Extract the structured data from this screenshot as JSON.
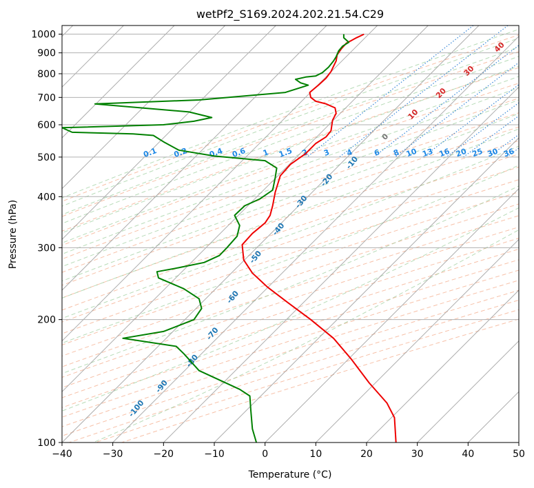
{
  "chart_data": {
    "type": "line",
    "title": "wetPf2_S169.2024.202.21.54.C29",
    "xlabel": "Temperature (°C)",
    "ylabel": "Pressure (hPa)",
    "xlim": [
      -40,
      50
    ],
    "ylim": [
      1050,
      100
    ],
    "y_scale": "log",
    "grid": true,
    "x_ticks": [
      -40,
      -30,
      -20,
      -10,
      0,
      10,
      20,
      30,
      40,
      50
    ],
    "y_ticks": [
      100,
      200,
      300,
      400,
      500,
      600,
      700,
      800,
      900,
      1000
    ],
    "colors": {
      "temperature": "#ee0000",
      "dewpoint": "#008000",
      "dry_adiabat": "#f4a582",
      "moist_adiabat": "#99cc99",
      "mixing_ratio": "#1f78d1",
      "isotherm": "#999999",
      "label_blue": "#1f77b4",
      "label_red": "#d62728",
      "label_mixing": "#1e88e5"
    },
    "series": [
      {
        "key": "temperature",
        "points": [
          [
            25.8,
            100
          ],
          [
            25.5,
            115
          ],
          [
            24.0,
            125
          ],
          [
            20.5,
            140
          ],
          [
            17.0,
            160
          ],
          [
            13.5,
            180
          ],
          [
            9.0,
            200
          ],
          [
            4.5,
            220
          ],
          [
            0.5,
            240
          ],
          [
            -2.5,
            260
          ],
          [
            -4.2,
            280
          ],
          [
            -4.5,
            305
          ],
          [
            -2.5,
            325
          ],
          [
            0.0,
            345
          ],
          [
            1.0,
            360
          ],
          [
            1.5,
            380
          ],
          [
            2.0,
            410
          ],
          [
            3.0,
            450
          ],
          [
            5.0,
            480
          ],
          [
            8.0,
            510
          ],
          [
            10.0,
            540
          ],
          [
            12.0,
            560
          ],
          [
            13.0,
            580
          ],
          [
            13.3,
            615
          ],
          [
            14.0,
            640
          ],
          [
            13.8,
            660
          ],
          [
            12.0,
            675
          ],
          [
            10.0,
            685
          ],
          [
            9.0,
            700
          ],
          [
            8.8,
            720
          ],
          [
            10.5,
            750
          ],
          [
            12.0,
            780
          ],
          [
            13.0,
            810
          ],
          [
            13.5,
            835
          ],
          [
            14.0,
            860
          ],
          [
            14.2,
            890
          ],
          [
            15.0,
            920
          ],
          [
            16.0,
            950
          ],
          [
            18.0,
            980
          ],
          [
            19.5,
            1000
          ]
        ]
      },
      {
        "key": "dewpoint",
        "points": [
          [
            -1.7,
            100
          ],
          [
            -2.5,
            108
          ],
          [
            -2.8,
            120
          ],
          [
            -3.0,
            130
          ],
          [
            -5.0,
            135
          ],
          [
            -13.0,
            150
          ],
          [
            -16.0,
            165
          ],
          [
            -17.5,
            172
          ],
          [
            -28.0,
            180
          ],
          [
            -20.0,
            187
          ],
          [
            -14.0,
            200
          ],
          [
            -12.5,
            213
          ],
          [
            -13.0,
            225
          ],
          [
            -16.0,
            238
          ],
          [
            -21.0,
            253
          ],
          [
            -21.3,
            262
          ],
          [
            -17.0,
            268
          ],
          [
            -12.0,
            276
          ],
          [
            -9.0,
            287
          ],
          [
            -7.5,
            300
          ],
          [
            -5.5,
            320
          ],
          [
            -5.0,
            340
          ],
          [
            -6.0,
            360
          ],
          [
            -4.0,
            380
          ],
          [
            -1.0,
            395
          ],
          [
            1.5,
            415
          ],
          [
            2.0,
            445
          ],
          [
            2.3,
            470
          ],
          [
            0.0,
            490
          ],
          [
            -10.0,
            503
          ],
          [
            -17.0,
            520
          ],
          [
            -20.0,
            545
          ],
          [
            -22.0,
            565
          ],
          [
            -26.0,
            570
          ],
          [
            -38.0,
            575
          ],
          [
            -40.0,
            590
          ],
          [
            -20.0,
            600
          ],
          [
            -14.0,
            612
          ],
          [
            -10.5,
            625
          ],
          [
            -15.0,
            645
          ],
          [
            -33.5,
            675
          ],
          [
            -13.0,
            690
          ],
          [
            4.0,
            720
          ],
          [
            8.5,
            750
          ],
          [
            7.0,
            760
          ],
          [
            6.0,
            775
          ],
          [
            8.0,
            785
          ],
          [
            10.0,
            790
          ],
          [
            11.3,
            805
          ],
          [
            12.5,
            830
          ],
          [
            13.5,
            860
          ],
          [
            14.0,
            880
          ],
          [
            14.5,
            910
          ],
          [
            15.3,
            935
          ],
          [
            16.5,
            955
          ],
          [
            15.5,
            980
          ],
          [
            15.5,
            1000
          ]
        ]
      }
    ],
    "annotations": {
      "moist_adiabats": [
        {
          "text": "-100",
          "x": -25,
          "y": 120
        },
        {
          "text": "-90",
          "x": -20,
          "y": 136
        },
        {
          "text": "-80",
          "x": -14,
          "y": 157
        },
        {
          "text": "-70",
          "x": -10,
          "y": 183
        },
        {
          "text": "-60",
          "x": -6,
          "y": 225
        },
        {
          "text": "-50",
          "x": -1.5,
          "y": 282
        },
        {
          "text": "-40",
          "x": 3,
          "y": 330
        },
        {
          "text": "-30",
          "x": 7.5,
          "y": 385
        },
        {
          "text": "-20",
          "x": 12.5,
          "y": 435
        },
        {
          "text": "-10",
          "x": 17.5,
          "y": 480
        }
      ],
      "dry_adiabats": [
        {
          "text": "0",
          "x": 24,
          "y": 555
        },
        {
          "text": "10",
          "x": 29.5,
          "y": 630
        },
        {
          "text": "20",
          "x": 35,
          "y": 710
        },
        {
          "text": "30",
          "x": 40.5,
          "y": 805
        },
        {
          "text": "40",
          "x": 46.5,
          "y": 920
        }
      ],
      "mixing_ratios": [
        {
          "text": "0.1",
          "x": -22.5
        },
        {
          "text": "0.2",
          "x": -16.5
        },
        {
          "text": "0.4",
          "x": -9.5
        },
        {
          "text": "0.6",
          "x": -5
        },
        {
          "text": "1",
          "x": 0.3
        },
        {
          "text": "1.5",
          "x": 4.2
        },
        {
          "text": "2",
          "x": 8
        },
        {
          "text": "3",
          "x": 12.3
        },
        {
          "text": "4",
          "x": 16.8
        },
        {
          "text": "6",
          "x": 22.2
        },
        {
          "text": "8",
          "x": 26
        },
        {
          "text": "10",
          "x": 29
        },
        {
          "text": "13",
          "x": 32.2
        },
        {
          "text": "16",
          "x": 35.5
        },
        {
          "text": "20",
          "x": 38.8
        },
        {
          "text": "25",
          "x": 42
        },
        {
          "text": "30",
          "x": 45
        },
        {
          "text": "36",
          "x": 48.2
        }
      ]
    }
  }
}
